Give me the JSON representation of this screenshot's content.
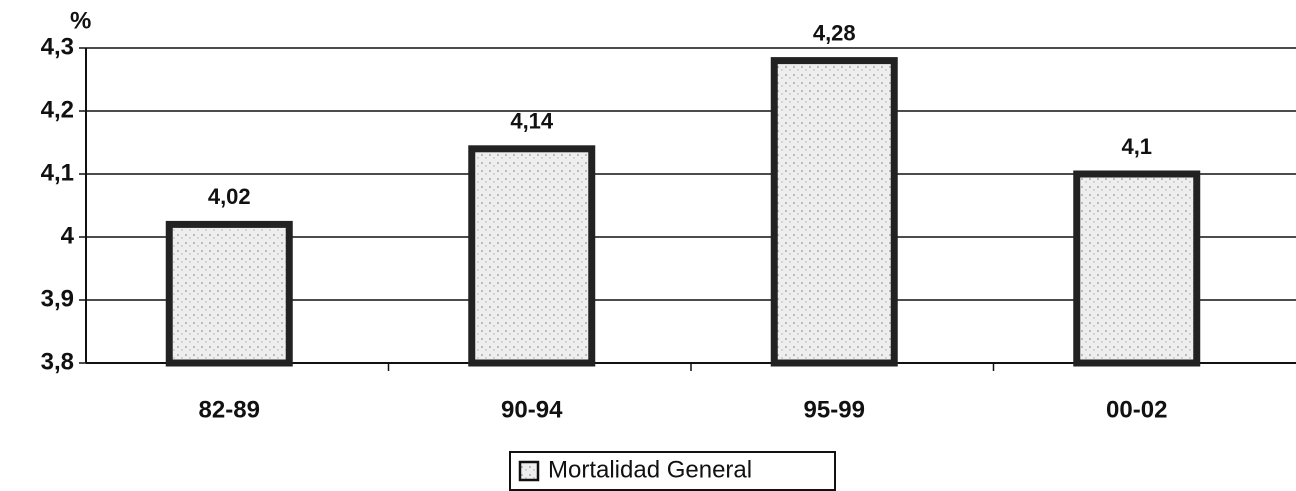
{
  "chart_data": {
    "type": "bar",
    "y_label": "%",
    "categories": [
      "82-89",
      "90-94",
      "95-99",
      "00-02"
    ],
    "series": [
      {
        "name": "Mortalidad General",
        "color": "#e6e6e6",
        "values": [
          4.02,
          4.14,
          4.28,
          4.1
        ],
        "value_labels": [
          "4,02",
          "4,14",
          "4,28",
          "4,1"
        ]
      }
    ],
    "ylim": [
      3.8,
      4.3
    ],
    "yticks": [
      {
        "value": 3.8,
        "label": "3,8"
      },
      {
        "value": 3.9,
        "label": "3,9"
      },
      4,
      {
        "value": 4.1,
        "label": "4,1"
      },
      {
        "value": 4.2,
        "label": "4,2"
      },
      {
        "value": 4.3,
        "label": "4,3"
      }
    ],
    "grid": true,
    "legend": "bottom"
  }
}
